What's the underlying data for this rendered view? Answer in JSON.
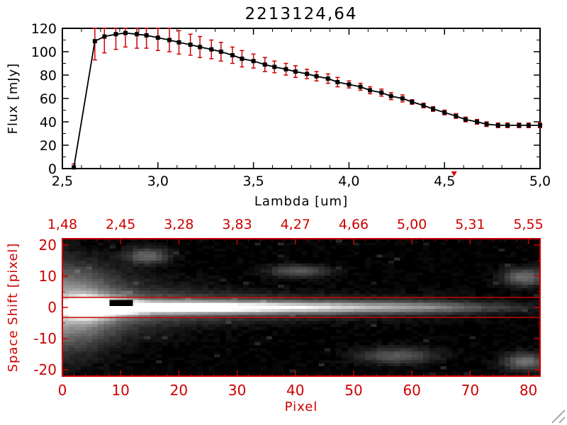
{
  "title": "2213124,64",
  "colors": {
    "line": "#000000",
    "error": "#cc0000",
    "axis_black": "#000000",
    "axis_red": "#cc0000",
    "background": "#ffffff"
  },
  "top_chart": {
    "ylabel": "Flux [mJy]",
    "xlabel": "Lambda [um]",
    "ytick_values": [
      0,
      20,
      40,
      60,
      80,
      100,
      120
    ],
    "ytick_labels": [
      "0",
      "20",
      "40",
      "60",
      "80",
      "100",
      "120"
    ],
    "xtick_values": [
      2.5,
      3.0,
      3.5,
      4.0,
      4.5,
      5.0
    ],
    "xtick_labels": [
      "2,5",
      "3,0",
      "3,5",
      "4,0",
      "4,5",
      "5,0"
    ],
    "axis_marker_lambda": 4.55
  },
  "bottom_chart": {
    "ylabel": "Space Shift [pixel]",
    "xlabel": "Pixel",
    "ytick_values": [
      20,
      10,
      0,
      -10,
      -20
    ],
    "ytick_labels": [
      "20",
      "10",
      "0",
      "-10",
      "-20"
    ],
    "xtick_values": [
      0,
      10,
      20,
      30,
      40,
      50,
      60,
      70,
      80
    ],
    "xtick_labels": [
      "0",
      "10",
      "20",
      "30",
      "40",
      "50",
      "60",
      "70",
      "80"
    ],
    "top_tick_labels": [
      "1,48",
      "2,45",
      "3,28",
      "3,83",
      "4,27",
      "4,66",
      "5,00",
      "5,31",
      "5,55"
    ]
  },
  "chart_data": [
    {
      "type": "line",
      "name": "spectrum",
      "title": "2213124,64",
      "xlabel": "Lambda [um]",
      "ylabel": "Flux [mJy]",
      "xlim": [
        2.5,
        5.0
      ],
      "ylim": [
        0,
        120
      ],
      "marker": "filled-square",
      "line_color": "#000000",
      "error_color": "#cc0000",
      "x": [
        2.56,
        2.67,
        2.72,
        2.78,
        2.83,
        2.89,
        2.94,
        3.0,
        3.06,
        3.11,
        3.17,
        3.22,
        3.28,
        3.33,
        3.39,
        3.44,
        3.5,
        3.56,
        3.61,
        3.67,
        3.72,
        3.78,
        3.83,
        3.89,
        3.94,
        4.0,
        4.06,
        4.11,
        4.17,
        4.22,
        4.28,
        4.33,
        4.39,
        4.44,
        4.5,
        4.56,
        4.61,
        4.67,
        4.72,
        4.78,
        4.83,
        4.89,
        4.94,
        5.0
      ],
      "y": [
        1,
        109,
        113,
        115,
        116,
        115,
        114,
        112,
        110,
        108,
        106,
        104,
        102,
        100,
        97,
        94,
        92,
        89,
        87,
        85,
        83,
        81,
        79,
        77,
        74,
        72,
        70,
        67,
        65,
        62,
        60,
        57,
        54,
        51,
        48,
        45,
        42,
        40,
        38,
        37,
        37,
        37,
        37,
        37
      ],
      "yerr": [
        3,
        16,
        14,
        13,
        12,
        12,
        11,
        11,
        10,
        10,
        9,
        9,
        8,
        8,
        7,
        7,
        6,
        6,
        5,
        5,
        5,
        4,
        4,
        4,
        4,
        3,
        3,
        3,
        3,
        3,
        3,
        2,
        2,
        2,
        2,
        2,
        2,
        2,
        2,
        2,
        2,
        2,
        2,
        2
      ]
    },
    {
      "type": "heatmap",
      "name": "spectral-image",
      "xlabel": "Pixel",
      "ylabel": "Space Shift [pixel]",
      "x_range": [
        0,
        82
      ],
      "shift_range": [
        -22,
        22
      ],
      "top_axis_labels": [
        "1,48",
        "2,45",
        "3,28",
        "3,83",
        "4,27",
        "4,66",
        "5,00",
        "5,31",
        "5,55"
      ],
      "aperture_shifts": [
        3.2,
        -3.2
      ],
      "render": {
        "width": 82,
        "height": 45,
        "core": {
          "x_peak": 9,
          "spread": 30,
          "base": 0.22,
          "peak": 0.85,
          "sigma": 1.15,
          "right_fade_start": 62,
          "right_fade_end": 80
        },
        "halo": {
          "amp": 0.5,
          "x_decay": 14,
          "sigma0": 9,
          "sigma_decay": 40,
          "sigma_min": 3
        },
        "mask": {
          "x0": 7.5,
          "x1": 11.5,
          "s0": 0.5,
          "s1": 2.8
        },
        "blobs": [
          {
            "x": 14,
            "s": 17,
            "sx": 2.5,
            "sy": 1.8,
            "a": 0.35
          },
          {
            "x": 40,
            "s": 12,
            "sx": 3.5,
            "sy": 1.4,
            "a": 0.3
          },
          {
            "x": 79,
            "s": 10,
            "sx": 2.5,
            "sy": 2.0,
            "a": 0.38
          },
          {
            "x": 57,
            "s": -16,
            "sx": 4.5,
            "sy": 1.8,
            "a": 0.3
          },
          {
            "x": 79,
            "s": -18,
            "sx": 2.5,
            "sy": 2.0,
            "a": 0.38
          },
          {
            "x": 3,
            "s": 0,
            "sx": 4.0,
            "sy": 8.0,
            "a": 0.25
          }
        ],
        "noise": 0.05,
        "gamma": 0.85,
        "seed": 1234
      }
    }
  ]
}
